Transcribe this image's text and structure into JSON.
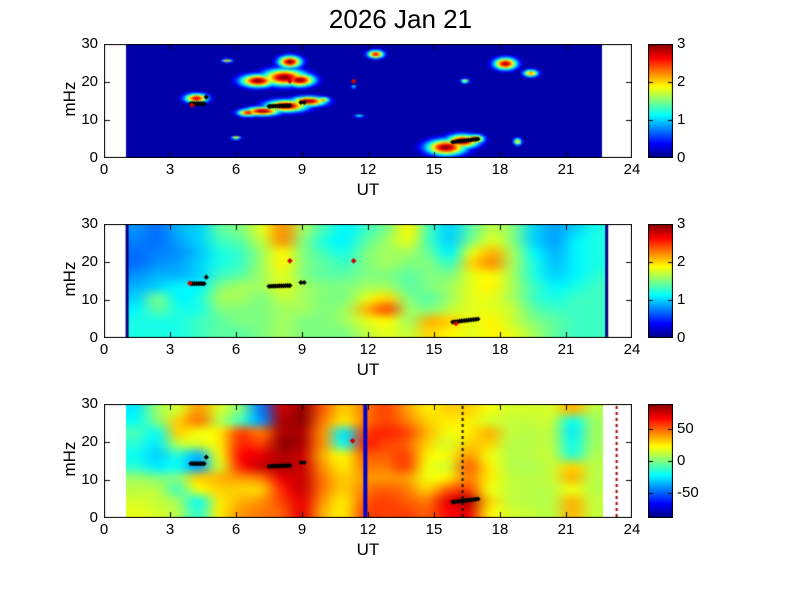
{
  "title": "2026 Jan 21",
  "chart_data": {
    "type": "heatmap",
    "title": "2026 Jan 21",
    "colormap": "jet",
    "x_axis": {
      "label": "UT",
      "range": [
        0,
        24
      ],
      "ticks": [
        0,
        3,
        6,
        9,
        12,
        15,
        18,
        21,
        24
      ]
    },
    "y_axis": {
      "label": "mHz",
      "range": [
        0,
        30
      ],
      "ticks": [
        0,
        10,
        20,
        30
      ]
    },
    "panels": [
      {
        "name": "wave-power",
        "xlabel": "UT",
        "ylabel": "mHz",
        "xticks": [
          0,
          3,
          6,
          9,
          12,
          15,
          18,
          21,
          24
        ],
        "yticks": [
          0,
          10,
          20,
          30
        ],
        "render": "blobs",
        "data_span_ut": [
          1.0,
          22.65
        ],
        "background_value": 0.12,
        "blobs": [
          [
            4.2,
            15.7,
            0.5,
            1.2,
            2.8
          ],
          [
            7.0,
            20.3,
            0.75,
            1.6,
            3
          ],
          [
            8.2,
            21.2,
            0.95,
            2.1,
            3
          ],
          [
            8.9,
            20.5,
            0.65,
            1.6,
            3
          ],
          [
            8.45,
            25.3,
            0.5,
            1.5,
            3
          ],
          [
            6.55,
            11.9,
            0.45,
            0.9,
            2.7
          ],
          [
            7.2,
            12.3,
            0.75,
            1.1,
            3
          ],
          [
            8.3,
            13.7,
            0.9,
            1.5,
            3
          ],
          [
            9.3,
            14.9,
            0.75,
            1.2,
            3
          ],
          [
            9.95,
            15.3,
            0.3,
            0.7,
            2.2
          ],
          [
            15.55,
            2.8,
            0.85,
            2.0,
            3
          ],
          [
            16.3,
            4.4,
            0.7,
            1.7,
            3
          ],
          [
            16.85,
            5.0,
            0.4,
            1.1,
            2.8
          ],
          [
            12.35,
            27.3,
            0.35,
            1.0,
            2.7
          ],
          [
            18.25,
            24.8,
            0.5,
            1.5,
            2.9
          ],
          [
            19.4,
            22.3,
            0.33,
            0.9,
            2.3
          ],
          [
            16.4,
            20.3,
            0.18,
            0.55,
            1.9
          ],
          [
            18.8,
            4.3,
            0.18,
            0.9,
            2.0
          ],
          [
            5.6,
            25.6,
            0.22,
            0.45,
            2.1
          ],
          [
            6.0,
            5.3,
            0.2,
            0.4,
            2.1
          ],
          [
            11.6,
            11.0,
            0.22,
            0.35,
            1.3
          ],
          [
            11.35,
            18.7,
            0.12,
            0.4,
            1.3
          ]
        ],
        "value_range": [
          0,
          3
        ],
        "colorbar": {
          "range": [
            0,
            3
          ],
          "ticks": [
            3,
            2,
            1,
            0
          ]
        },
        "vlines": [],
        "marker_chains": [
          [
            3.95,
            4.55,
            14.3,
            14.3,
            8
          ],
          [
            4.65,
            4.65,
            16.0,
            16.0,
            1
          ],
          [
            7.5,
            8.45,
            13.6,
            13.8,
            11
          ],
          [
            8.95,
            9.1,
            14.6,
            14.6,
            2
          ],
          [
            15.85,
            17.0,
            4.2,
            5.0,
            12
          ]
        ],
        "red_diamonds": [
          [
            4.0,
            13.9
          ],
          [
            8.45,
            20.2
          ],
          [
            11.35,
            20.2
          ]
        ]
      },
      {
        "name": "background-power",
        "xlabel": "UT",
        "ylabel": "mHz",
        "xticks": [
          0,
          3,
          6,
          9,
          12,
          15,
          18,
          21,
          24
        ],
        "yticks": [
          0,
          10,
          20,
          30
        ],
        "render": "grid",
        "data_span_ut": [
          1.0,
          22.9
        ],
        "grid_cols_ut": [
          1,
          2,
          3,
          4,
          5,
          6,
          7,
          8,
          9,
          10,
          11,
          12,
          13,
          14,
          15,
          16,
          17,
          18,
          19,
          20,
          21,
          22,
          23
        ],
        "grid_rows_mhz": [
          28.5,
          25.5,
          22.5,
          19.5,
          16.5,
          13.5,
          10.5,
          7.5,
          4.5,
          1.5
        ],
        "grid_values": [
          [
            0.8,
            0.7,
            0.9,
            1.0,
            1.4,
            1.5,
            1.8,
            2.2,
            1.6,
            1.3,
            1.1,
            1.3,
            1.5,
            1.9,
            1.3,
            1.0,
            1.4,
            1.7,
            1.5,
            1.0,
            0.85,
            1.0,
            1.2
          ],
          [
            0.75,
            0.7,
            0.85,
            1.0,
            1.3,
            1.4,
            1.7,
            2.2,
            1.5,
            1.2,
            1.1,
            1.4,
            1.6,
            1.8,
            1.3,
            1.0,
            1.5,
            1.8,
            1.5,
            1.0,
            0.85,
            1.1,
            1.2
          ],
          [
            0.7,
            0.75,
            0.8,
            0.95,
            1.2,
            1.3,
            1.6,
            1.9,
            1.5,
            1.3,
            1.2,
            1.5,
            1.6,
            1.6,
            1.4,
            1.1,
            1.8,
            2.1,
            1.6,
            1.1,
            0.9,
            1.1,
            1.2
          ],
          [
            0.7,
            0.8,
            0.85,
            1.0,
            1.2,
            1.3,
            1.6,
            1.9,
            1.5,
            1.4,
            1.3,
            1.5,
            1.6,
            1.5,
            1.5,
            1.3,
            2.0,
            2.2,
            1.6,
            1.2,
            0.95,
            1.1,
            1.2
          ],
          [
            0.8,
            0.9,
            0.9,
            1.0,
            1.3,
            1.4,
            1.6,
            1.8,
            1.5,
            1.4,
            1.4,
            1.5,
            1.5,
            1.4,
            1.5,
            1.5,
            1.8,
            1.9,
            1.6,
            1.2,
            1.0,
            1.1,
            1.25
          ],
          [
            0.9,
            1.0,
            1.1,
            1.1,
            1.5,
            1.6,
            1.6,
            1.8,
            1.6,
            1.5,
            1.5,
            1.6,
            1.6,
            1.4,
            1.5,
            1.6,
            1.8,
            1.9,
            1.6,
            1.3,
            1.1,
            1.2,
            1.3
          ],
          [
            1.0,
            1.45,
            1.1,
            1.2,
            1.6,
            1.6,
            1.5,
            1.7,
            1.6,
            1.5,
            1.5,
            1.8,
            2.0,
            1.5,
            1.4,
            1.6,
            1.8,
            1.8,
            1.6,
            1.3,
            1.2,
            1.3,
            1.3
          ],
          [
            1.1,
            1.4,
            1.2,
            1.2,
            1.5,
            1.5,
            1.5,
            1.6,
            1.6,
            1.5,
            1.6,
            2.1,
            2.4,
            1.6,
            1.5,
            1.7,
            1.8,
            1.8,
            1.7,
            1.4,
            1.3,
            1.3,
            1.3
          ],
          [
            1.2,
            1.2,
            1.2,
            1.3,
            1.4,
            1.5,
            1.5,
            1.6,
            1.5,
            1.5,
            1.6,
            1.8,
            1.9,
            1.6,
            2.1,
            2.0,
            1.8,
            1.9,
            1.7,
            1.5,
            1.4,
            1.3,
            1.3
          ],
          [
            1.2,
            1.2,
            1.2,
            1.3,
            1.4,
            1.4,
            1.5,
            1.6,
            1.5,
            1.5,
            1.5,
            1.7,
            1.8,
            1.7,
            2.0,
            1.9,
            1.8,
            1.9,
            1.8,
            1.6,
            1.4,
            1.3,
            1.3
          ]
        ],
        "value_range": [
          0,
          3
        ],
        "colorbar": {
          "range": [
            0,
            3
          ],
          "ticks": [
            3,
            2,
            1,
            0
          ]
        },
        "vlines": [
          {
            "ut": 1.05,
            "color": "#000080",
            "width": 3,
            "style": "solid"
          },
          {
            "ut": 22.85,
            "color": "#000080",
            "width": 3,
            "style": "solid"
          }
        ],
        "marker_chains": [
          [
            3.95,
            4.55,
            14.3,
            14.3,
            8
          ],
          [
            4.65,
            4.65,
            16.0,
            16.0,
            1
          ],
          [
            7.5,
            8.45,
            13.6,
            13.8,
            11
          ],
          [
            8.95,
            9.1,
            14.6,
            14.6,
            2
          ],
          [
            15.85,
            17.0,
            4.2,
            5.0,
            12
          ]
        ],
        "red_diamonds": [
          [
            3.9,
            14.4
          ],
          [
            8.45,
            20.3
          ],
          [
            11.35,
            20.3
          ],
          [
            16.0,
            3.8
          ]
        ]
      },
      {
        "name": "power-difference",
        "xlabel": "UT",
        "ylabel": "mHz",
        "xticks": [
          0,
          3,
          6,
          9,
          12,
          15,
          18,
          21,
          24
        ],
        "yticks": [
          0,
          10,
          20,
          30
        ],
        "render": "grid",
        "data_span_ut": [
          1.0,
          22.7
        ],
        "grid_cols_ut": [
          1,
          2,
          3,
          4,
          5,
          6,
          7,
          8,
          9,
          10,
          11,
          12,
          13,
          14,
          15,
          16,
          17,
          18,
          19,
          20,
          21,
          22,
          23
        ],
        "grid_rows_mhz": [
          28.5,
          25.5,
          22.5,
          19.5,
          16.5,
          13.5,
          10.5,
          7.5,
          4.5,
          1.5
        ],
        "grid_values": [
          [
            -25,
            5,
            15,
            40,
            15,
            0,
            -45,
            75,
            85,
            50,
            30,
            45,
            55,
            40,
            25,
            30,
            30,
            20,
            15,
            15,
            15,
            35,
            10
          ],
          [
            -20,
            0,
            30,
            45,
            10,
            -10,
            -40,
            80,
            85,
            45,
            25,
            45,
            55,
            45,
            30,
            25,
            25,
            15,
            12,
            12,
            12,
            -20,
            5
          ],
          [
            -10,
            -20,
            30,
            20,
            25,
            55,
            45,
            80,
            80,
            40,
            -25,
            55,
            60,
            55,
            35,
            20,
            25,
            35,
            12,
            10,
            10,
            -25,
            5
          ],
          [
            -15,
            -25,
            10,
            15,
            25,
            60,
            55,
            85,
            80,
            40,
            -20,
            60,
            55,
            50,
            30,
            15,
            30,
            30,
            10,
            10,
            10,
            -20,
            5
          ],
          [
            -20,
            -30,
            -15,
            -35,
            20,
            65,
            70,
            80,
            75,
            35,
            20,
            50,
            50,
            55,
            25,
            20,
            40,
            20,
            10,
            10,
            12,
            -15,
            8
          ],
          [
            -15,
            -25,
            -20,
            -40,
            15,
            60,
            75,
            80,
            75,
            40,
            25,
            45,
            45,
            55,
            20,
            15,
            50,
            25,
            10,
            8,
            12,
            30,
            10
          ],
          [
            5,
            0,
            0,
            30,
            35,
            40,
            45,
            70,
            75,
            45,
            30,
            40,
            40,
            40,
            20,
            25,
            45,
            25,
            12,
            10,
            12,
            35,
            10
          ],
          [
            10,
            10,
            -10,
            20,
            30,
            30,
            30,
            60,
            75,
            45,
            30,
            45,
            50,
            45,
            30,
            50,
            55,
            20,
            12,
            10,
            10,
            20,
            10
          ],
          [
            15,
            12,
            5,
            -20,
            25,
            35,
            40,
            55,
            70,
            40,
            25,
            50,
            55,
            50,
            45,
            70,
            80,
            30,
            12,
            10,
            10,
            35,
            12
          ],
          [
            18,
            15,
            8,
            -15,
            25,
            40,
            45,
            50,
            70,
            35,
            25,
            55,
            55,
            55,
            50,
            65,
            70,
            25,
            15,
            12,
            10,
            35,
            12
          ]
        ],
        "value_range": [
          -88,
          88
        ],
        "colorbar": {
          "range": [
            -88,
            88
          ],
          "ticks": [
            50,
            0,
            -50
          ]
        },
        "vlines": [
          {
            "ut": 11.88,
            "color": "#0000c8",
            "width": 4,
            "style": "solid"
          },
          {
            "ut": 16.3,
            "color": "#1a1a1a",
            "width": 2,
            "style": "dotted"
          },
          {
            "ut": 23.3,
            "color": "#990000",
            "width": 2,
            "style": "dotted"
          }
        ],
        "marker_chains": [
          [
            3.95,
            4.55,
            14.3,
            14.3,
            8
          ],
          [
            4.65,
            4.65,
            16.0,
            16.0,
            1
          ],
          [
            7.5,
            8.45,
            13.6,
            13.8,
            11
          ],
          [
            8.95,
            9.1,
            14.6,
            14.6,
            2
          ],
          [
            15.85,
            17.0,
            4.2,
            5.0,
            12
          ]
        ],
        "red_diamonds": [
          [
            11.3,
            20.3
          ]
        ]
      }
    ],
    "marker_colors": {
      "chain": "#000000",
      "diamond": "#d40000"
    }
  }
}
